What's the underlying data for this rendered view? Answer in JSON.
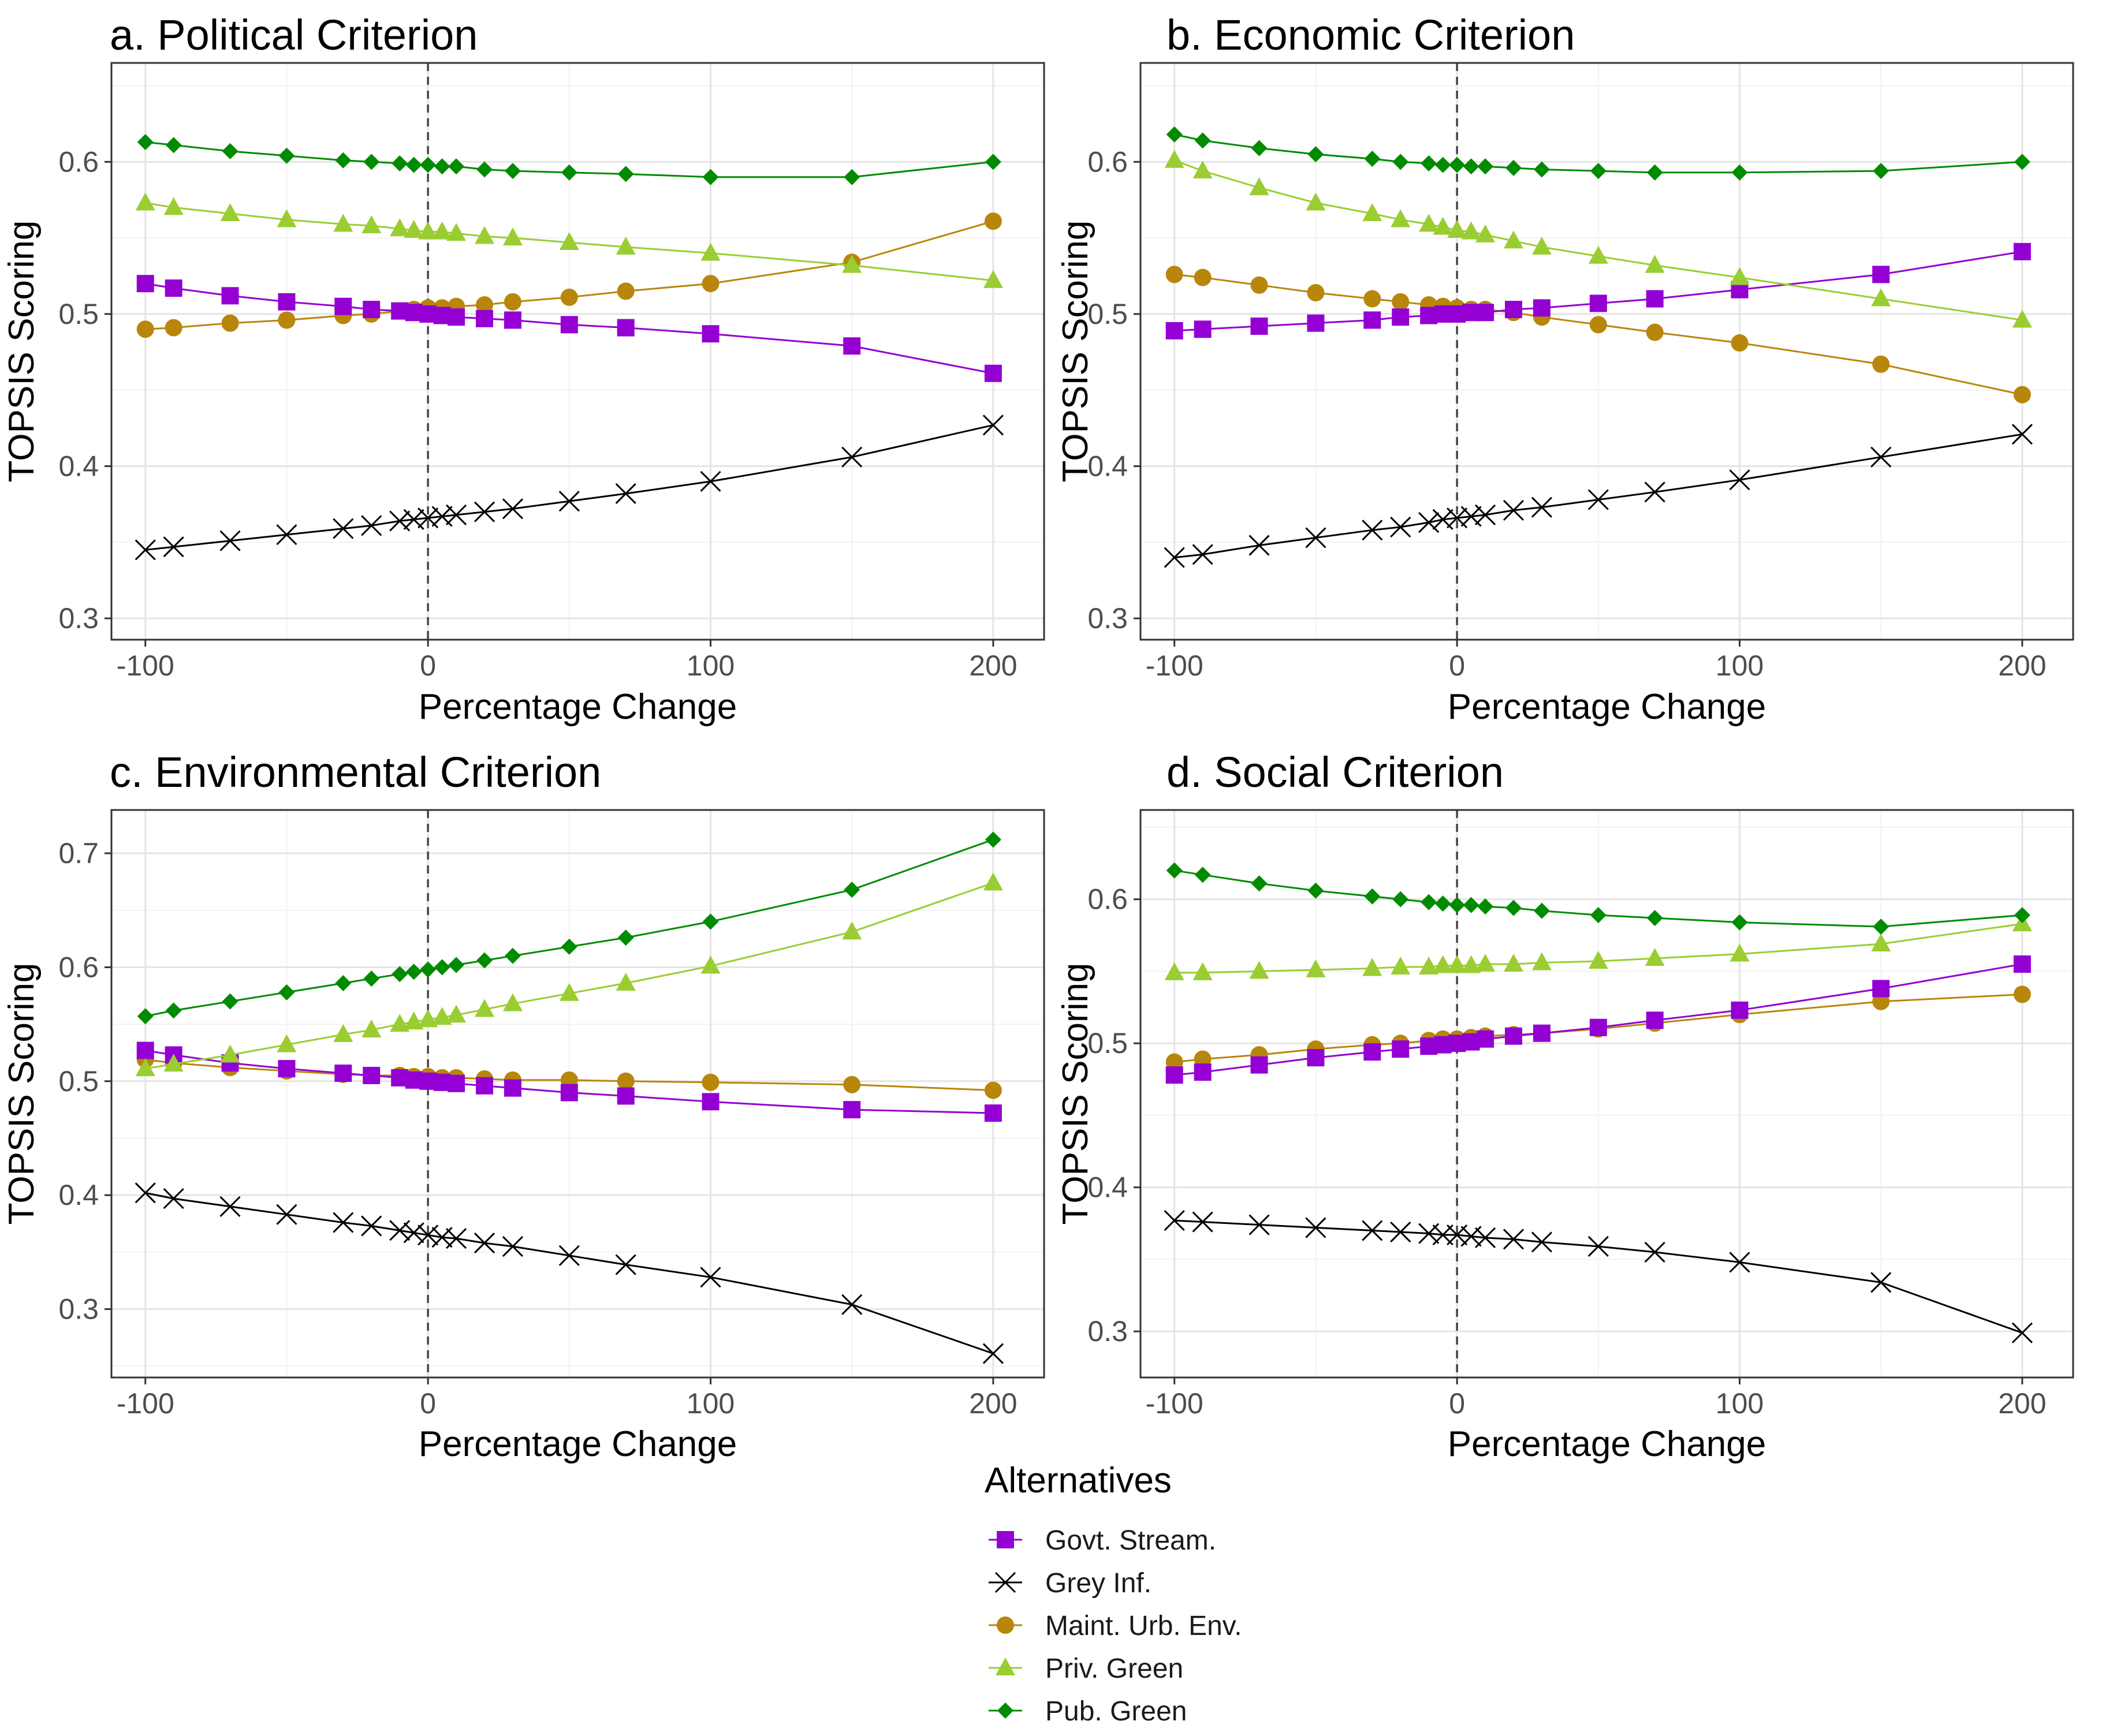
{
  "chart_data": {
    "type": "line",
    "x_values": [
      -100,
      -90,
      -70,
      -50,
      -30,
      -20,
      -10,
      -5,
      0,
      5,
      10,
      20,
      30,
      50,
      70,
      100,
      150,
      200
    ],
    "panels": [
      {
        "title": "a. Political Criterion",
        "xlabel": "Percentage Change",
        "ylabel": "TOPSIS Scoring",
        "xlim": [
          -112,
          218
        ],
        "ylim": [
          0.286,
          0.665
        ],
        "xticks": [
          -100,
          0,
          100,
          200
        ],
        "xtick_labels": [
          "-100",
          "0",
          "100",
          "200"
        ],
        "yticks": [
          0.3,
          0.4,
          0.5,
          0.6
        ],
        "ytick_labels": [
          "0.3",
          "0.4",
          "0.5",
          "0.6"
        ],
        "series": [
          {
            "name": "Govt. Stream.",
            "values": [
              0.52,
              0.517,
              0.512,
              0.508,
              0.505,
              0.503,
              0.502,
              0.501,
              0.5,
              0.499,
              0.498,
              0.497,
              0.496,
              0.493,
              0.491,
              0.487,
              0.479,
              0.461
            ]
          },
          {
            "name": "Grey Inf.",
            "values": [
              0.345,
              0.347,
              0.351,
              0.355,
              0.359,
              0.361,
              0.364,
              0.365,
              0.366,
              0.367,
              0.368,
              0.37,
              0.372,
              0.377,
              0.382,
              0.39,
              0.406,
              0.427
            ]
          },
          {
            "name": "Maint. Urb. Env.",
            "values": [
              0.49,
              0.491,
              0.494,
              0.496,
              0.499,
              0.5,
              0.502,
              0.503,
              0.504,
              0.504,
              0.505,
              0.506,
              0.508,
              0.511,
              0.515,
              0.52,
              0.534,
              0.561
            ]
          },
          {
            "name": "Priv. Green",
            "values": [
              0.573,
              0.57,
              0.566,
              0.562,
              0.559,
              0.558,
              0.556,
              0.555,
              0.554,
              0.554,
              0.553,
              0.551,
              0.55,
              0.547,
              0.544,
              0.54,
              0.532,
              0.522
            ]
          },
          {
            "name": "Pub. Green",
            "values": [
              0.613,
              0.611,
              0.607,
              0.604,
              0.601,
              0.6,
              0.599,
              0.598,
              0.598,
              0.597,
              0.597,
              0.595,
              0.594,
              0.593,
              0.592,
              0.59,
              0.59,
              0.6
            ]
          }
        ]
      },
      {
        "title": "b. Economic Criterion",
        "xlabel": "Percentage Change",
        "ylabel": "TOPSIS Scoring",
        "xlim": [
          -112,
          218
        ],
        "ylim": [
          0.286,
          0.665
        ],
        "xticks": [
          -100,
          0,
          100,
          200
        ],
        "xtick_labels": [
          "-100",
          "0",
          "100",
          "200"
        ],
        "yticks": [
          0.3,
          0.4,
          0.5,
          0.6
        ],
        "ytick_labels": [
          "0.3",
          "0.4",
          "0.5",
          "0.6"
        ],
        "series": [
          {
            "name": "Govt. Stream.",
            "values": [
              0.489,
              0.49,
              0.492,
              0.494,
              0.496,
              0.498,
              0.499,
              0.5,
              0.5,
              0.501,
              0.501,
              0.503,
              0.504,
              0.507,
              0.51,
              0.516,
              0.526,
              0.541
            ]
          },
          {
            "name": "Grey Inf.",
            "values": [
              0.34,
              0.342,
              0.348,
              0.353,
              0.358,
              0.36,
              0.363,
              0.365,
              0.366,
              0.367,
              0.368,
              0.371,
              0.373,
              0.378,
              0.383,
              0.391,
              0.406,
              0.421
            ]
          },
          {
            "name": "Maint. Urb. Env.",
            "values": [
              0.526,
              0.524,
              0.519,
              0.514,
              0.51,
              0.508,
              0.506,
              0.505,
              0.504,
              0.503,
              0.503,
              0.501,
              0.498,
              0.493,
              0.488,
              0.481,
              0.467,
              0.447
            ]
          },
          {
            "name": "Priv. Green",
            "values": [
              0.601,
              0.594,
              0.583,
              0.573,
              0.566,
              0.562,
              0.559,
              0.557,
              0.555,
              0.554,
              0.552,
              0.548,
              0.544,
              0.538,
              0.532,
              0.524,
              0.51,
              0.496
            ]
          },
          {
            "name": "Pub. Green",
            "values": [
              0.618,
              0.614,
              0.609,
              0.605,
              0.602,
              0.6,
              0.599,
              0.598,
              0.598,
              0.597,
              0.597,
              0.596,
              0.595,
              0.594,
              0.593,
              0.593,
              0.594,
              0.6
            ]
          }
        ]
      },
      {
        "title": "c. Environmental Criterion",
        "xlabel": "Percentage Change",
        "ylabel": "TOPSIS Scoring",
        "xlim": [
          -112,
          218
        ],
        "ylim": [
          0.24,
          0.738
        ],
        "xticks": [
          -100,
          0,
          100,
          200
        ],
        "xtick_labels": [
          "-100",
          "0",
          "100",
          "200"
        ],
        "yticks": [
          0.3,
          0.4,
          0.5,
          0.6,
          0.7
        ],
        "ytick_labels": [
          "0.3",
          "0.4",
          "0.5",
          "0.6",
          "0.7"
        ],
        "series": [
          {
            "name": "Govt. Stream.",
            "values": [
              0.527,
              0.523,
              0.516,
              0.511,
              0.507,
              0.505,
              0.503,
              0.501,
              0.5,
              0.499,
              0.498,
              0.496,
              0.494,
              0.49,
              0.487,
              0.482,
              0.475,
              0.472
            ]
          },
          {
            "name": "Grey Inf.",
            "values": [
              0.402,
              0.397,
              0.39,
              0.383,
              0.376,
              0.373,
              0.369,
              0.367,
              0.365,
              0.363,
              0.362,
              0.358,
              0.355,
              0.347,
              0.339,
              0.328,
              0.304,
              0.261
            ]
          },
          {
            "name": "Maint. Urb. Env.",
            "values": [
              0.519,
              0.516,
              0.512,
              0.509,
              0.506,
              0.505,
              0.505,
              0.504,
              0.504,
              0.503,
              0.503,
              0.502,
              0.501,
              0.501,
              0.5,
              0.499,
              0.497,
              0.492
            ]
          },
          {
            "name": "Priv. Green",
            "values": [
              0.511,
              0.515,
              0.523,
              0.532,
              0.541,
              0.545,
              0.55,
              0.552,
              0.554,
              0.556,
              0.558,
              0.563,
              0.568,
              0.577,
              0.586,
              0.601,
              0.631,
              0.674
            ]
          },
          {
            "name": "Pub. Green",
            "values": [
              0.557,
              0.562,
              0.57,
              0.578,
              0.586,
              0.59,
              0.594,
              0.596,
              0.598,
              0.6,
              0.602,
              0.606,
              0.61,
              0.618,
              0.626,
              0.64,
              0.668,
              0.712
            ]
          }
        ]
      },
      {
        "title": "d. Social Criterion",
        "xlabel": "Percentage Change",
        "ylabel": "TOPSIS Scoring",
        "xlim": [
          -112,
          218
        ],
        "ylim": [
          0.268,
          0.662
        ],
        "xticks": [
          -100,
          0,
          100,
          200
        ],
        "xtick_labels": [
          "-100",
          "0",
          "100",
          "200"
        ],
        "yticks": [
          0.3,
          0.4,
          0.5,
          0.6
        ],
        "ytick_labels": [
          "0.3",
          "0.4",
          "0.5",
          "0.6"
        ],
        "series": [
          {
            "name": "Govt. Stream.",
            "values": [
              0.478,
              0.48,
              0.485,
              0.49,
              0.494,
              0.496,
              0.498,
              0.499,
              0.5,
              0.501,
              0.503,
              0.505,
              0.507,
              0.511,
              0.516,
              0.523,
              0.538,
              0.555
            ]
          },
          {
            "name": "Grey Inf.",
            "values": [
              0.377,
              0.376,
              0.374,
              0.372,
              0.37,
              0.369,
              0.368,
              0.367,
              0.367,
              0.366,
              0.365,
              0.364,
              0.362,
              0.359,
              0.355,
              0.348,
              0.334,
              0.299
            ]
          },
          {
            "name": "Maint. Urb. Env.",
            "values": [
              0.487,
              0.489,
              0.492,
              0.496,
              0.499,
              0.5,
              0.502,
              0.503,
              0.503,
              0.504,
              0.505,
              0.506,
              0.507,
              0.51,
              0.514,
              0.52,
              0.529,
              0.534
            ]
          },
          {
            "name": "Priv. Green",
            "values": [
              0.549,
              0.549,
              0.55,
              0.551,
              0.552,
              0.553,
              0.553,
              0.554,
              0.554,
              0.554,
              0.555,
              0.555,
              0.556,
              0.557,
              0.559,
              0.562,
              0.569,
              0.583
            ]
          },
          {
            "name": "Pub. Green",
            "values": [
              0.62,
              0.617,
              0.611,
              0.606,
              0.602,
              0.6,
              0.598,
              0.597,
              0.596,
              0.596,
              0.595,
              0.594,
              0.592,
              0.589,
              0.587,
              0.584,
              0.581,
              0.589
            ]
          }
        ]
      }
    ],
    "reference_line": {
      "x": 0,
      "style": "dashed"
    },
    "grid": true,
    "legend": {
      "title": "Alternatives",
      "placement": "bottom-center",
      "entries": [
        {
          "name": "Govt. Stream.",
          "marker": "square",
          "color": "#9400D3"
        },
        {
          "name": "Grey Inf.",
          "marker": "cross",
          "color": "#000000"
        },
        {
          "name": "Maint. Urb. Env.",
          "marker": "circle",
          "color": "#B8860B"
        },
        {
          "name": "Priv. Green",
          "marker": "triangle",
          "color": "#9ACD32"
        },
        {
          "name": "Pub. Green",
          "marker": "diamond",
          "color": "#008B00"
        }
      ]
    }
  }
}
